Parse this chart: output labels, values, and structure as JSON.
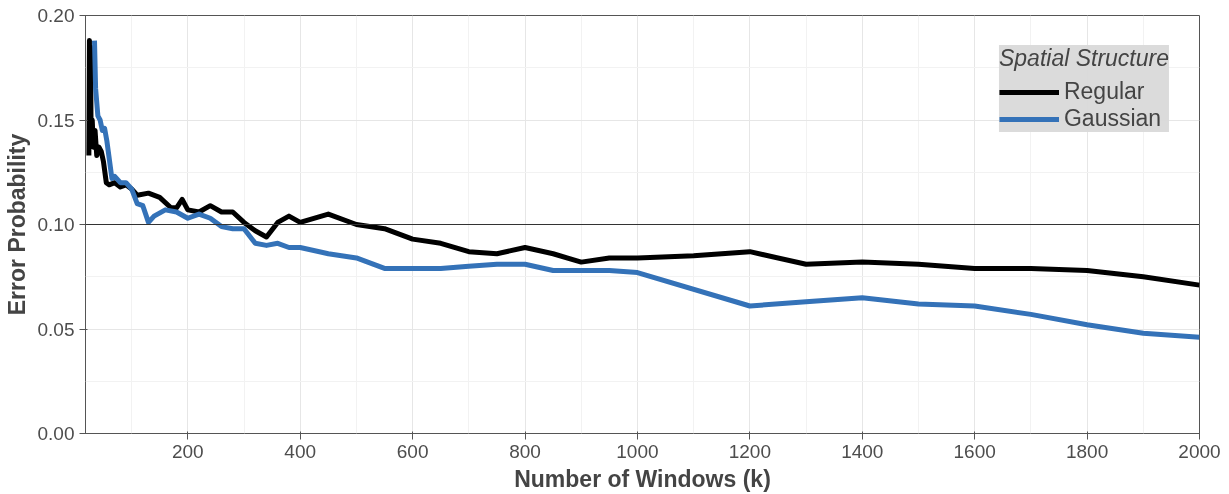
{
  "chart_data": {
    "type": "line",
    "xlabel": "Number of Windows (k)",
    "ylabel": "Error Probability",
    "legend_title": "Spatial Structure",
    "xlim": [
      18,
      2000
    ],
    "ylim": [
      0,
      0.2
    ],
    "xticks": [
      200,
      400,
      600,
      800,
      1000,
      1200,
      1400,
      1600,
      1800,
      2000
    ],
    "yticks": [
      {
        "value": 0,
        "label": "0.00"
      },
      0.05,
      {
        "value": 0.1,
        "label": "0.10"
      },
      0.15,
      {
        "value": 0.2,
        "label": "0.20"
      }
    ],
    "grid": true,
    "legend": "top right",
    "line_style": "solid",
    "marker": "none",
    "ref_lines": [
      {
        "axis": "y",
        "value": 0.1,
        "label": null,
        "color": "#333333"
      }
    ],
    "series": [
      {
        "name": "Regular",
        "color": "#000000",
        "x": [
          24,
          25,
          26,
          27,
          28,
          30,
          32,
          35,
          38,
          42,
          46,
          50,
          55,
          60,
          70,
          80,
          90,
          100,
          110,
          130,
          150,
          170,
          180,
          190,
          200,
          220,
          240,
          260,
          280,
          300,
          320,
          340,
          360,
          380,
          400,
          450,
          500,
          550,
          600,
          650,
          700,
          750,
          800,
          850,
          900,
          950,
          1000,
          1100,
          1200,
          1300,
          1400,
          1500,
          1600,
          1700,
          1800,
          1900,
          2000
        ],
        "values": [
          0.133,
          0.188,
          0.14,
          0.185,
          0.14,
          0.15,
          0.137,
          0.145,
          0.133,
          0.137,
          0.135,
          0.13,
          0.12,
          0.119,
          0.12,
          0.118,
          0.119,
          0.117,
          0.114,
          0.115,
          0.113,
          0.108,
          0.108,
          0.112,
          0.107,
          0.106,
          0.109,
          0.106,
          0.106,
          0.101,
          0.097,
          0.094,
          0.101,
          0.104,
          0.101,
          0.105,
          0.1,
          0.098,
          0.093,
          0.091,
          0.087,
          0.086,
          0.089,
          0.086,
          0.082,
          0.084,
          0.084,
          0.085,
          0.087,
          0.081,
          0.082,
          0.081,
          0.079,
          0.079,
          0.078,
          0.075,
          0.071
        ]
      },
      {
        "name": "Gaussian",
        "color": "#3472b8",
        "x": [
          34,
          36,
          40,
          44,
          48,
          52,
          56,
          60,
          65,
          70,
          80,
          90,
          100,
          110,
          120,
          130,
          140,
          160,
          180,
          200,
          220,
          240,
          260,
          280,
          300,
          320,
          340,
          360,
          380,
          400,
          450,
          500,
          550,
          600,
          650,
          700,
          750,
          800,
          850,
          900,
          950,
          1000,
          1200,
          1300,
          1400,
          1500,
          1600,
          1700,
          1800,
          1900,
          2000
        ],
        "values": [
          0.188,
          0.165,
          0.152,
          0.15,
          0.145,
          0.146,
          0.14,
          0.132,
          0.122,
          0.123,
          0.12,
          0.12,
          0.117,
          0.11,
          0.109,
          0.101,
          0.104,
          0.107,
          0.106,
          0.103,
          0.105,
          0.103,
          0.099,
          0.098,
          0.098,
          0.091,
          0.09,
          0.091,
          0.089,
          0.089,
          0.086,
          0.084,
          0.079,
          0.079,
          0.079,
          0.08,
          0.081,
          0.081,
          0.078,
          0.078,
          0.078,
          0.077,
          0.061,
          0.063,
          0.065,
          0.062,
          0.061,
          0.057,
          0.052,
          0.048,
          0.046
        ]
      }
    ]
  }
}
